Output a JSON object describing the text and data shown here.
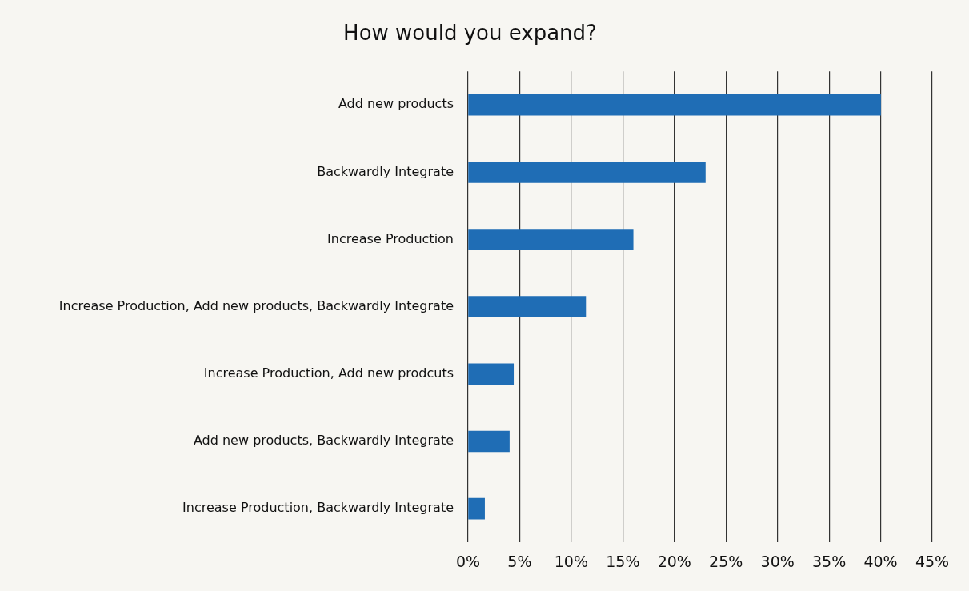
{
  "chart_data": {
    "type": "bar",
    "orientation": "horizontal",
    "title": "How would you expand?",
    "categories": [
      "Add new products",
      "Backwardly Integrate",
      "Increase Production",
      "Increase Production, Add new products, Backwardly Integrate",
      "Increase Production, Add new prodcuts",
      "Add new products, Backwardly Integrate",
      "Increase Production, Backwardly Integrate"
    ],
    "values": [
      40,
      23,
      16,
      11.4,
      4.4,
      4,
      1.6
    ],
    "color": "#1f6db5",
    "xlim": [
      0,
      45
    ],
    "xticks": [
      {
        "value": 0,
        "label": "0%"
      },
      {
        "value": 5,
        "label": "5%"
      },
      {
        "value": 10,
        "label": "10%"
      },
      {
        "value": 15,
        "label": "15%"
      },
      {
        "value": 20,
        "label": "20%"
      },
      {
        "value": 25,
        "label": "25%"
      },
      {
        "value": 30,
        "label": "30%"
      },
      {
        "value": 35,
        "label": "35%"
      },
      {
        "value": 40,
        "label": "40%"
      },
      {
        "value": 45,
        "label": "45%"
      }
    ],
    "grid": "x",
    "legend": false
  }
}
